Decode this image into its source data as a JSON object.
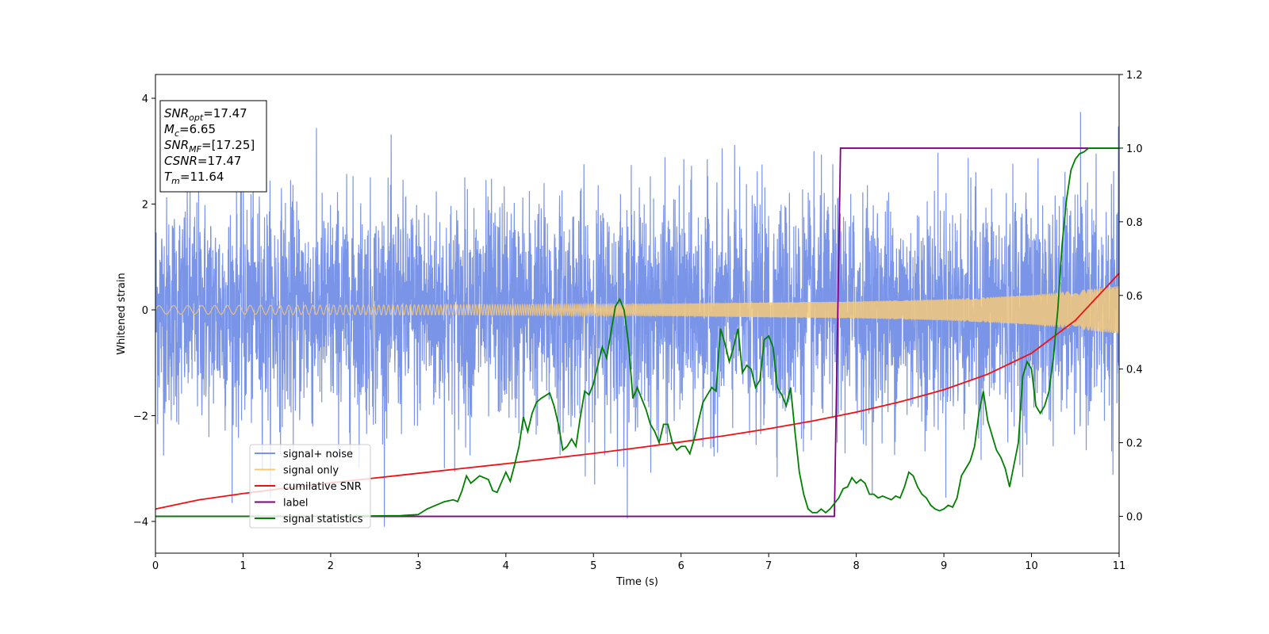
{
  "chart_data": {
    "type": "line",
    "xlabel": "Time (s)",
    "ylabel": "Whitened strain",
    "xlim": [
      0,
      11
    ],
    "ylim": [
      -4.6,
      4.45
    ],
    "y2lim": [
      -0.1,
      1.2
    ],
    "x_ticks": [
      0,
      1,
      2,
      3,
      4,
      5,
      6,
      7,
      8,
      9,
      10,
      11
    ],
    "y_ticks": [
      -4,
      -2,
      0,
      2,
      4
    ],
    "y2_ticks": [
      0.0,
      0.2,
      0.4,
      0.6,
      0.8,
      1.0,
      1.2
    ],
    "x_tick_labels": [
      "0",
      "1",
      "2",
      "3",
      "4",
      "5",
      "6",
      "7",
      "8",
      "9",
      "10",
      "11"
    ],
    "y_tick_labels": [
      "−4",
      "−2",
      "0",
      "2",
      "4"
    ],
    "y2_tick_labels": [
      "0.0",
      "0.2",
      "0.4",
      "0.6",
      "0.8",
      "1.0",
      "1.2"
    ],
    "grid": false,
    "legend_position": "bottom-left",
    "info_box": [
      {
        "main": "SNR",
        "sub": "opt",
        "value": "=17.47"
      },
      {
        "main": "M",
        "sub": "c",
        "value": "=6.65"
      },
      {
        "main": "SNR",
        "sub": "MF",
        "value": "=[17.25]"
      },
      {
        "main": "CSNR",
        "sub": "",
        "value": "=17.47"
      },
      {
        "main": "T",
        "sub": "m",
        "value": "=11.64"
      }
    ],
    "series": [
      {
        "name": "signal+ noise",
        "color": "#7a94e8",
        "axis": "left",
        "description_of_shape": "dense gaussian-like noise around 0",
        "noise_std": 1.05,
        "noise_range": [
          -4.1,
          4.05
        ]
      },
      {
        "name": "signal only",
        "color": "#f5c97a",
        "axis": "left",
        "amplitude_envelope": {
          "x": [
            0,
            2,
            4,
            6,
            8,
            9,
            10,
            11
          ],
          "y": [
            0.08,
            0.09,
            0.1,
            0.12,
            0.16,
            0.2,
            0.28,
            0.45
          ]
        }
      },
      {
        "name": "cumilative SNR",
        "color": "#ee1111",
        "axis": "right",
        "x": [
          0,
          0.5,
          1,
          1.5,
          2,
          2.5,
          3,
          3.5,
          4,
          4.5,
          5,
          5.5,
          6,
          6.5,
          7,
          7.5,
          8,
          8.5,
          9,
          9.5,
          10,
          10.5,
          11
        ],
        "y": [
          0.02,
          0.045,
          0.062,
          0.077,
          0.091,
          0.104,
          0.117,
          0.13,
          0.143,
          0.157,
          0.171,
          0.186,
          0.202,
          0.219,
          0.238,
          0.259,
          0.283,
          0.311,
          0.344,
          0.386,
          0.443,
          0.532,
          0.66
        ]
      },
      {
        "name": "label",
        "color": "#800080",
        "axis": "right",
        "x": [
          0,
          7.75,
          7.82,
          11
        ],
        "y": [
          0.0,
          0.0,
          1.0,
          1.0
        ]
      },
      {
        "name": "signal statistics",
        "color": "#008000",
        "axis": "right",
        "x": [
          0,
          1,
          2,
          2.8,
          3.0,
          3.1,
          3.2,
          3.3,
          3.4,
          3.45,
          3.5,
          3.55,
          3.6,
          3.65,
          3.7,
          3.8,
          3.85,
          3.9,
          4.0,
          4.05,
          4.1,
          4.15,
          4.2,
          4.25,
          4.3,
          4.35,
          4.4,
          4.5,
          4.55,
          4.6,
          4.65,
          4.7,
          4.75,
          4.8,
          4.85,
          4.9,
          4.95,
          5.0,
          5.1,
          5.15,
          5.2,
          5.25,
          5.3,
          5.35,
          5.4,
          5.45,
          5.5,
          5.55,
          5.6,
          5.65,
          5.7,
          5.75,
          5.8,
          5.85,
          5.9,
          5.95,
          6.0,
          6.05,
          6.1,
          6.15,
          6.2,
          6.25,
          6.3,
          6.35,
          6.4,
          6.45,
          6.5,
          6.55,
          6.6,
          6.65,
          6.7,
          6.75,
          6.8,
          6.85,
          6.9,
          6.95,
          7.0,
          7.05,
          7.1,
          7.15,
          7.2,
          7.25,
          7.3,
          7.35,
          7.4,
          7.45,
          7.5,
          7.55,
          7.6,
          7.65,
          7.7,
          7.75,
          7.8,
          7.85,
          7.9,
          7.95,
          8.0,
          8.05,
          8.1,
          8.15,
          8.2,
          8.25,
          8.3,
          8.35,
          8.4,
          8.45,
          8.5,
          8.55,
          8.6,
          8.65,
          8.7,
          8.75,
          8.8,
          8.85,
          8.9,
          8.95,
          9.0,
          9.05,
          9.1,
          9.15,
          9.2,
          9.25,
          9.3,
          9.35,
          9.4,
          9.45,
          9.5,
          9.55,
          9.6,
          9.65,
          9.7,
          9.75,
          9.8,
          9.85,
          9.9,
          9.95,
          10.0,
          10.05,
          10.1,
          10.15,
          10.2,
          10.25,
          10.3,
          10.35,
          10.4,
          10.45,
          10.5,
          10.55,
          10.6,
          10.65,
          10.7,
          10.75,
          10.8,
          10.9,
          11.0
        ],
        "y": [
          0.0,
          0.0,
          0.0,
          0.002,
          0.005,
          0.02,
          0.03,
          0.04,
          0.045,
          0.04,
          0.07,
          0.11,
          0.09,
          0.1,
          0.11,
          0.1,
          0.07,
          0.065,
          0.12,
          0.095,
          0.14,
          0.19,
          0.27,
          0.23,
          0.28,
          0.31,
          0.32,
          0.335,
          0.3,
          0.25,
          0.18,
          0.19,
          0.21,
          0.19,
          0.27,
          0.34,
          0.33,
          0.36,
          0.46,
          0.43,
          0.5,
          0.57,
          0.59,
          0.56,
          0.47,
          0.32,
          0.35,
          0.32,
          0.29,
          0.25,
          0.23,
          0.2,
          0.25,
          0.25,
          0.2,
          0.18,
          0.19,
          0.19,
          0.17,
          0.21,
          0.26,
          0.31,
          0.33,
          0.35,
          0.34,
          0.51,
          0.47,
          0.42,
          0.46,
          0.51,
          0.39,
          0.41,
          0.4,
          0.35,
          0.37,
          0.48,
          0.49,
          0.46,
          0.35,
          0.33,
          0.3,
          0.35,
          0.23,
          0.12,
          0.06,
          0.02,
          0.01,
          0.01,
          0.02,
          0.01,
          0.02,
          0.035,
          0.05,
          0.075,
          0.08,
          0.105,
          0.09,
          0.1,
          0.09,
          0.06,
          0.06,
          0.05,
          0.055,
          0.05,
          0.045,
          0.055,
          0.05,
          0.08,
          0.12,
          0.11,
          0.08,
          0.06,
          0.05,
          0.03,
          0.02,
          0.015,
          0.02,
          0.03,
          0.025,
          0.05,
          0.11,
          0.13,
          0.15,
          0.19,
          0.28,
          0.34,
          0.26,
          0.22,
          0.18,
          0.16,
          0.13,
          0.08,
          0.14,
          0.2,
          0.38,
          0.42,
          0.4,
          0.3,
          0.28,
          0.3,
          0.34,
          0.43,
          0.56,
          0.74,
          0.86,
          0.94,
          0.97,
          0.985,
          0.99,
          1.0,
          1.0,
          1.0,
          1.0,
          1.0,
          1.0
        ]
      }
    ]
  }
}
